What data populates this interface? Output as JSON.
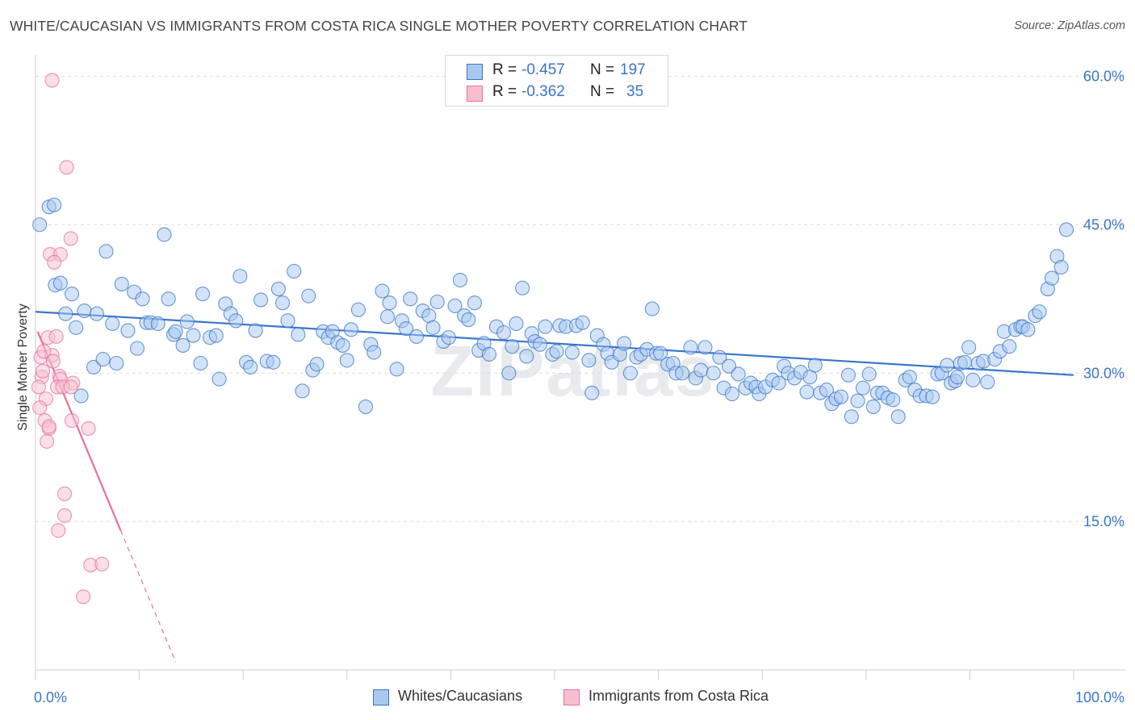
{
  "title": "WHITE/CAUCASIAN VS IMMIGRANTS FROM COSTA RICA SINGLE MOTHER POVERTY CORRELATION CHART",
  "source": "Source: ZipAtlas.com",
  "watermark": "ZIPatlas",
  "colors": {
    "blue": "#3a75c9",
    "blue_fill": "#a8c8ef",
    "pink": "#e8709a",
    "pink_fill": "#f6bfd0",
    "axis_text": "#3a75c9",
    "grid": "#dddddd"
  },
  "legend_top": [
    {
      "series": "Whites/Caucasians",
      "r_label": "R = ",
      "r_value": "-0.457",
      "n_label": "N = ",
      "n_value": "197"
    },
    {
      "series": "Immigrants from Costa Rica",
      "r_label": "R = ",
      "r_value": "-0.362",
      "n_label": "N = ",
      "n_value": "35"
    }
  ],
  "chart_data": {
    "type": "scatter",
    "title": "WHITE/CAUCASIAN VS IMMIGRANTS FROM COSTA RICA SINGLE MOTHER POVERTY CORRELATION CHART",
    "xlabel": "",
    "ylabel": "Single Mother Poverty",
    "xlim": [
      0,
      100
    ],
    "ylim": [
      0,
      62
    ],
    "x_tick_labels": [
      "0.0%",
      "100.0%"
    ],
    "y_ticks": [
      15,
      30,
      45,
      60
    ],
    "y_tick_labels": [
      "15.0%",
      "30.0%",
      "45.0%",
      "60.0%"
    ],
    "grid": true,
    "legend_position": "bottom-center",
    "series": [
      {
        "name": "Whites/Caucasians",
        "color": "#3a75c9",
        "trend": {
          "x0": 0,
          "y0": 36.2,
          "x1": 100,
          "y1": 29.8
        },
        "points": [
          [
            0.4,
            45
          ],
          [
            1.3,
            46.8
          ],
          [
            1.8,
            47
          ],
          [
            1.9,
            38.9
          ],
          [
            2.4,
            39.1
          ],
          [
            2.9,
            36
          ],
          [
            3.5,
            38
          ],
          [
            3.9,
            34.6
          ],
          [
            4.4,
            27.7
          ],
          [
            4.7,
            36.3
          ],
          [
            5.6,
            30.6
          ],
          [
            5.9,
            36
          ],
          [
            6.5,
            31.4
          ],
          [
            6.8,
            42.3
          ],
          [
            7.4,
            35
          ],
          [
            7.8,
            31
          ],
          [
            8.3,
            39
          ],
          [
            8.9,
            34.3
          ],
          [
            9.5,
            38.2
          ],
          [
            9.8,
            32.5
          ],
          [
            10.3,
            37.5
          ],
          [
            10.7,
            35.1
          ],
          [
            11.1,
            35.1
          ],
          [
            11.8,
            35
          ],
          [
            12.4,
            44
          ],
          [
            12.8,
            37.5
          ],
          [
            13.3,
            33.9
          ],
          [
            13.5,
            34.2
          ],
          [
            14.2,
            32.8
          ],
          [
            14.6,
            35.2
          ],
          [
            15.2,
            33.8
          ],
          [
            15.9,
            31
          ],
          [
            16.1,
            38
          ],
          [
            16.8,
            33.6
          ],
          [
            17.4,
            33.8
          ],
          [
            17.7,
            29.4
          ],
          [
            18.3,
            37
          ],
          [
            18.8,
            36
          ],
          [
            19.3,
            35.3
          ],
          [
            19.7,
            39.8
          ],
          [
            20.3,
            31.1
          ],
          [
            20.7,
            30.6
          ],
          [
            21.2,
            34.3
          ],
          [
            21.7,
            37.4
          ],
          [
            22.3,
            31.2
          ],
          [
            22.9,
            31.1
          ],
          [
            23.4,
            38.5
          ],
          [
            23.8,
            37.1
          ],
          [
            24.3,
            35.3
          ],
          [
            24.9,
            40.3
          ],
          [
            25.3,
            33.9
          ],
          [
            25.7,
            28.2
          ],
          [
            26.3,
            37.8
          ],
          [
            26.7,
            30.3
          ],
          [
            27.1,
            30.9
          ],
          [
            27.7,
            34.2
          ],
          [
            28.2,
            33.6
          ],
          [
            28.6,
            34.2
          ],
          [
            29.1,
            33.1
          ],
          [
            29.6,
            32.8
          ],
          [
            30,
            31.3
          ],
          [
            30.4,
            34.4
          ],
          [
            31.1,
            36.4
          ],
          [
            31.8,
            26.6
          ],
          [
            32.3,
            32.9
          ],
          [
            32.6,
            32.1
          ],
          [
            33.4,
            38.3
          ],
          [
            33.9,
            35.7
          ],
          [
            34.1,
            37.1
          ],
          [
            34.8,
            30.4
          ],
          [
            35.3,
            35.3
          ],
          [
            35.7,
            34.5
          ],
          [
            36.1,
            37.5
          ],
          [
            36.7,
            33.7
          ],
          [
            37.3,
            36.3
          ],
          [
            37.9,
            35.8
          ],
          [
            38.3,
            34.6
          ],
          [
            38.7,
            37.2
          ],
          [
            39.3,
            33.2
          ],
          [
            39.8,
            33.6
          ],
          [
            40.4,
            36.8
          ],
          [
            40.9,
            39.4
          ],
          [
            41.3,
            35.8
          ],
          [
            41.7,
            35.4
          ],
          [
            42.3,
            37.1
          ],
          [
            42.7,
            32.3
          ],
          [
            43.2,
            33
          ],
          [
            43.7,
            31.9
          ],
          [
            44.4,
            34.7
          ],
          [
            45.1,
            34.1
          ],
          [
            45.6,
            30
          ],
          [
            45.9,
            32.7
          ],
          [
            46.3,
            35
          ],
          [
            46.9,
            38.6
          ],
          [
            47.3,
            31.7
          ],
          [
            47.8,
            34
          ],
          [
            48.1,
            33.2
          ],
          [
            48.6,
            32.9
          ],
          [
            49.1,
            34.7
          ],
          [
            49.8,
            31.9
          ],
          [
            50.2,
            32.2
          ],
          [
            50.5,
            34.8
          ],
          [
            51.1,
            34.7
          ],
          [
            51.7,
            32.1
          ],
          [
            52.1,
            34.8
          ],
          [
            52.7,
            35.1
          ],
          [
            53.3,
            31.3
          ],
          [
            53.6,
            28
          ],
          [
            54.1,
            33.8
          ],
          [
            54.7,
            32.9
          ],
          [
            55.1,
            32
          ],
          [
            55.5,
            31.1
          ],
          [
            56.3,
            31.9
          ],
          [
            56.7,
            33
          ],
          [
            57.3,
            30
          ],
          [
            57.9,
            31.6
          ],
          [
            58.3,
            31.9
          ],
          [
            58.9,
            32.4
          ],
          [
            59.4,
            36.5
          ],
          [
            59.8,
            32
          ],
          [
            60.2,
            32
          ],
          [
            60.9,
            30.9
          ],
          [
            61.4,
            31
          ],
          [
            61.7,
            30
          ],
          [
            62.3,
            30
          ],
          [
            63.1,
            32.6
          ],
          [
            63.6,
            29.5
          ],
          [
            64.1,
            30.3
          ],
          [
            64.5,
            32.6
          ],
          [
            65.3,
            30
          ],
          [
            65.9,
            31.6
          ],
          [
            66.3,
            28.5
          ],
          [
            66.8,
            30.7
          ],
          [
            67.1,
            27.9
          ],
          [
            67.7,
            29.9
          ],
          [
            68.4,
            28.5
          ],
          [
            68.9,
            29
          ],
          [
            69.4,
            28.6
          ],
          [
            69.7,
            27.9
          ],
          [
            70.3,
            28.6
          ],
          [
            71,
            29.3
          ],
          [
            71.6,
            29
          ],
          [
            72.1,
            30.7
          ],
          [
            72.5,
            30
          ],
          [
            73.1,
            29.5
          ],
          [
            73.7,
            30.1
          ],
          [
            74.3,
            28.1
          ],
          [
            74.6,
            29.6
          ],
          [
            75.1,
            30.8
          ],
          [
            75.6,
            28
          ],
          [
            76.2,
            28.3
          ],
          [
            76.7,
            26.9
          ],
          [
            77.1,
            27.4
          ],
          [
            77.6,
            27.6
          ],
          [
            78.3,
            29.8
          ],
          [
            78.6,
            25.6
          ],
          [
            79.2,
            27.2
          ],
          [
            79.7,
            28.5
          ],
          [
            80.3,
            29.9
          ],
          [
            80.7,
            26.6
          ],
          [
            81.1,
            28
          ],
          [
            81.6,
            28
          ],
          [
            82.1,
            27.5
          ],
          [
            82.6,
            27.3
          ],
          [
            83.1,
            25.6
          ],
          [
            83.8,
            29.3
          ],
          [
            84.2,
            29.6
          ],
          [
            84.7,
            28.3
          ],
          [
            85.2,
            27.7
          ],
          [
            85.8,
            27.7
          ],
          [
            86.4,
            27.6
          ],
          [
            86.9,
            29.9
          ],
          [
            87.3,
            30
          ],
          [
            87.8,
            30.8
          ],
          [
            88.2,
            29
          ],
          [
            88.6,
            29.2
          ],
          [
            88.8,
            29.6
          ],
          [
            89.1,
            31
          ],
          [
            89.5,
            31.1
          ],
          [
            89.9,
            32.6
          ],
          [
            90.3,
            29.3
          ],
          [
            90.8,
            31
          ],
          [
            91.3,
            31.2
          ],
          [
            91.7,
            29.1
          ],
          [
            92.4,
            31.4
          ],
          [
            92.9,
            32.2
          ],
          [
            93.3,
            34.2
          ],
          [
            93.8,
            32.7
          ],
          [
            94.4,
            34.4
          ],
          [
            94.9,
            34.7
          ],
          [
            95.1,
            34.7
          ],
          [
            95.6,
            34.4
          ],
          [
            96.3,
            35.8
          ],
          [
            96.7,
            36.2
          ],
          [
            97.5,
            38.5
          ],
          [
            97.9,
            39.6
          ],
          [
            98.4,
            41.8
          ],
          [
            98.8,
            40.7
          ],
          [
            99.3,
            44.5
          ]
        ]
      },
      {
        "name": "Immigrants from Costa Rica",
        "color": "#e8709a",
        "trend": {
          "x0": 0.2,
          "y0": 34.2,
          "x1": 8.2,
          "y1": 14.1,
          "dash_to_x": 13.5,
          "dash_to_y": 0.8
        },
        "points": [
          [
            1.6,
            59.6
          ],
          [
            3,
            50.8
          ],
          [
            3.4,
            43.6
          ],
          [
            1.4,
            42
          ],
          [
            2.4,
            42
          ],
          [
            1.8,
            41.2
          ],
          [
            0.5,
            31.6
          ],
          [
            0.6,
            29.6
          ],
          [
            1,
            27.4
          ],
          [
            0.4,
            26.5
          ],
          [
            0.9,
            25.2
          ],
          [
            1.3,
            24.4
          ],
          [
            1.1,
            23.1
          ],
          [
            1.2,
            33.6
          ],
          [
            2,
            33.7
          ],
          [
            1.6,
            31.8
          ],
          [
            1.7,
            31.2
          ],
          [
            0.8,
            32.2
          ],
          [
            0.7,
            30.2
          ],
          [
            0.3,
            28.6
          ],
          [
            2.3,
            29.7
          ],
          [
            2.4,
            29.4
          ],
          [
            2.1,
            28.6
          ],
          [
            3.6,
            29
          ],
          [
            2.6,
            28.6
          ],
          [
            3.4,
            28.6
          ],
          [
            1.3,
            24.6
          ],
          [
            3.5,
            25.2
          ],
          [
            5.1,
            24.4
          ],
          [
            2.8,
            17.8
          ],
          [
            2.8,
            15.6
          ],
          [
            2.2,
            14.1
          ],
          [
            5.3,
            10.6
          ],
          [
            6.4,
            10.7
          ],
          [
            4.6,
            7.4
          ]
        ]
      }
    ]
  }
}
